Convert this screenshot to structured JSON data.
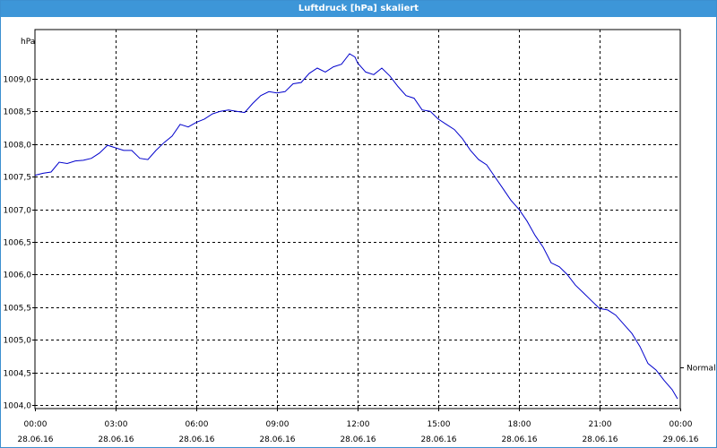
{
  "window": {
    "title": "Luftdruck [hPa] skaliert"
  },
  "chart_data": {
    "type": "line",
    "title": "Luftdruck [hPa] skaliert",
    "ylabel": "hPa",
    "xlabel": "",
    "ylim": [
      1003.95,
      1009.75
    ],
    "xlim": [
      0,
      24
    ],
    "grid": true,
    "y_ticks": [
      "1004,0",
      "1004,5",
      "1005,0",
      "1005,5",
      "1006,0",
      "1006,5",
      "1007,0",
      "1007,5",
      "1008,0",
      "1008,5",
      "1009,0"
    ],
    "y_tick_values": [
      1004.0,
      1004.5,
      1005.0,
      1005.5,
      1006.0,
      1006.5,
      1007.0,
      1007.5,
      1008.0,
      1008.5,
      1009.0
    ],
    "x_ticks": [
      {
        "time": "00:00",
        "date": "28.06.16"
      },
      {
        "time": "03:00",
        "date": "28.06.16"
      },
      {
        "time": "06:00",
        "date": "28.06.16"
      },
      {
        "time": "09:00",
        "date": "28.06.16"
      },
      {
        "time": "12:00",
        "date": "28.06.16"
      },
      {
        "time": "15:00",
        "date": "28.06.16"
      },
      {
        "time": "18:00",
        "date": "28.06.16"
      },
      {
        "time": "21:00",
        "date": "28.06.16"
      },
      {
        "time": "00:00",
        "date": "29.06.16"
      }
    ],
    "reference": {
      "label": "Normal",
      "value": 1004.5
    },
    "series": [
      {
        "color": "#0000cc",
        "x": [
          0,
          0.3,
          0.6,
          0.9,
          1.2,
          1.5,
          1.8,
          2.1,
          2.4,
          2.7,
          3.0,
          3.3,
          3.6,
          3.9,
          4.2,
          4.5,
          4.8,
          5.1,
          5.4,
          5.7,
          6.0,
          6.3,
          6.6,
          6.9,
          7.2,
          7.5,
          7.8,
          8.1,
          8.4,
          8.7,
          9.0,
          9.3,
          9.6,
          9.9,
          10.2,
          10.5,
          10.8,
          11.1,
          11.4,
          11.7,
          11.9,
          12.0,
          12.3,
          12.6,
          12.9,
          13.2,
          13.5,
          13.8,
          14.1,
          14.4,
          14.7,
          15.0,
          15.3,
          15.6,
          15.9,
          16.2,
          16.5,
          16.8,
          17.1,
          17.4,
          17.7,
          18.0,
          18.3,
          18.6,
          18.9,
          19.2,
          19.5,
          19.8,
          20.1,
          20.4,
          20.7,
          21.0,
          21.3,
          21.6,
          21.9,
          22.2,
          22.5,
          22.8,
          23.1,
          23.4,
          23.7,
          23.9
        ],
        "values": [
          1007.52,
          1007.55,
          1007.57,
          1007.72,
          1007.7,
          1007.74,
          1007.75,
          1007.78,
          1007.86,
          1007.98,
          1007.94,
          1007.9,
          1007.9,
          1007.78,
          1007.76,
          1007.9,
          1008.02,
          1008.12,
          1008.3,
          1008.26,
          1008.33,
          1008.38,
          1008.46,
          1008.5,
          1008.52,
          1008.5,
          1008.48,
          1008.62,
          1008.74,
          1008.8,
          1008.78,
          1008.8,
          1008.92,
          1008.94,
          1009.08,
          1009.16,
          1009.1,
          1009.18,
          1009.22,
          1009.38,
          1009.33,
          1009.24,
          1009.1,
          1009.06,
          1009.16,
          1009.04,
          1008.88,
          1008.74,
          1008.7,
          1008.52,
          1008.5,
          1008.38,
          1008.3,
          1008.22,
          1008.08,
          1007.9,
          1007.76,
          1007.68,
          1007.5,
          1007.32,
          1007.14,
          1007.0,
          1006.82,
          1006.6,
          1006.42,
          1006.18,
          1006.12,
          1006.0,
          1005.84,
          1005.72,
          1005.6,
          1005.48,
          1005.46,
          1005.38,
          1005.24,
          1005.1,
          1004.9,
          1004.64,
          1004.54,
          1004.38,
          1004.24,
          1004.1
        ]
      }
    ]
  }
}
